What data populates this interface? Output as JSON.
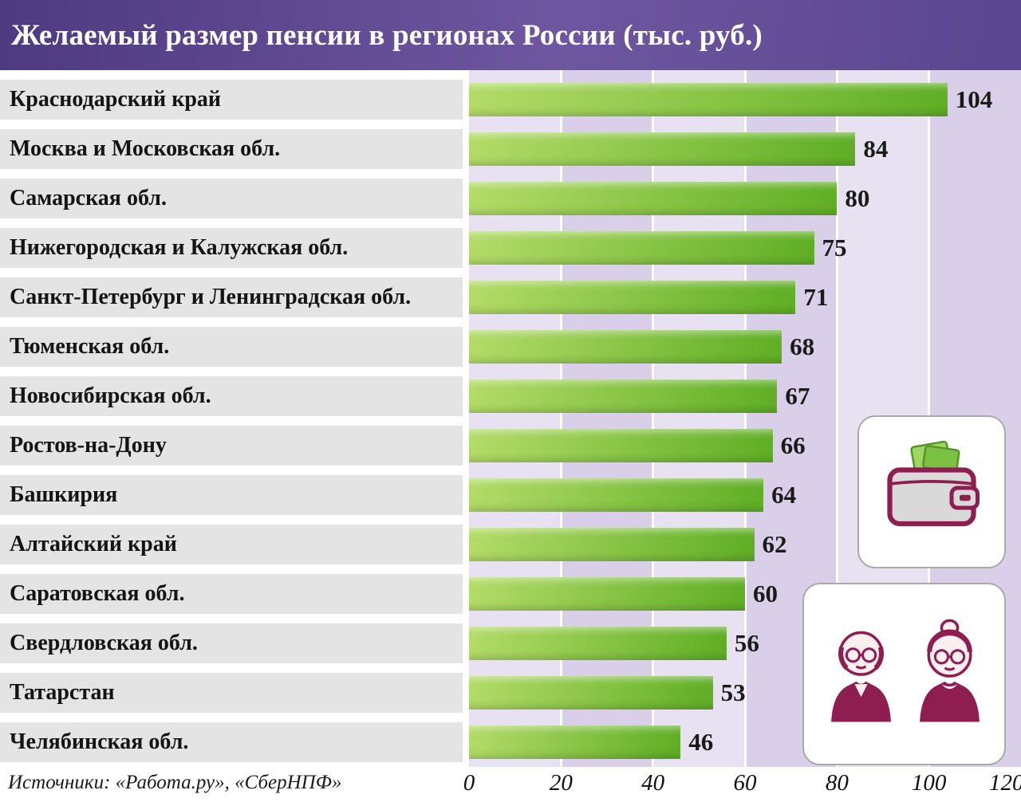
{
  "header": {
    "title": "Желаемый размер пенсии в регионах России (тыс. руб.)"
  },
  "chart_data": {
    "type": "bar",
    "orientation": "horizontal",
    "title": "Желаемый размер пенсии в регионах России (тыс. руб.)",
    "unit": "тыс. руб.",
    "categories": [
      "Краснодарский край",
      "Москва и Московская обл.",
      "Самарская обл.",
      "Нижегородская и Калужская обл.",
      "Санкт-Петербург и Ленинградская обл.",
      "Тюменская обл.",
      "Новосибирская обл.",
      "Ростов-на-Дону",
      "Башкирия",
      "Алтайский край",
      "Саратовская обл.",
      "Свердловская обл.",
      "Татарстан",
      "Челябинская обл."
    ],
    "values": [
      104,
      84,
      80,
      75,
      71,
      68,
      67,
      66,
      64,
      62,
      60,
      56,
      53,
      46
    ],
    "xlim": [
      0,
      120
    ],
    "xticks": [
      "0",
      "20",
      "40",
      "60",
      "80",
      "100",
      "120"
    ],
    "grid": "vertical-white-lines",
    "legend": "none"
  },
  "footer": {
    "source": "Источники: «Работа.ру», «СберНПФ»"
  },
  "icons": {
    "wallet": "wallet-with-banknotes",
    "couple": "elderly-couple"
  },
  "colors": {
    "bar_gradient_start": "#b3db68",
    "bar_gradient_end": "#5fae25",
    "plot_band_light": "#e7e1f1",
    "plot_band_dark": "#dacfe8",
    "gridline": "#ffffff",
    "label_strip_bg": "#e4e4e4",
    "value_text": "#1a1a1a",
    "header_purple": "#5a4590",
    "icon_outline": "#8e1e50",
    "bill_green": "#7cc142",
    "skin_light": "#fdeef0",
    "wallet_gray": "#d9d9d9"
  }
}
